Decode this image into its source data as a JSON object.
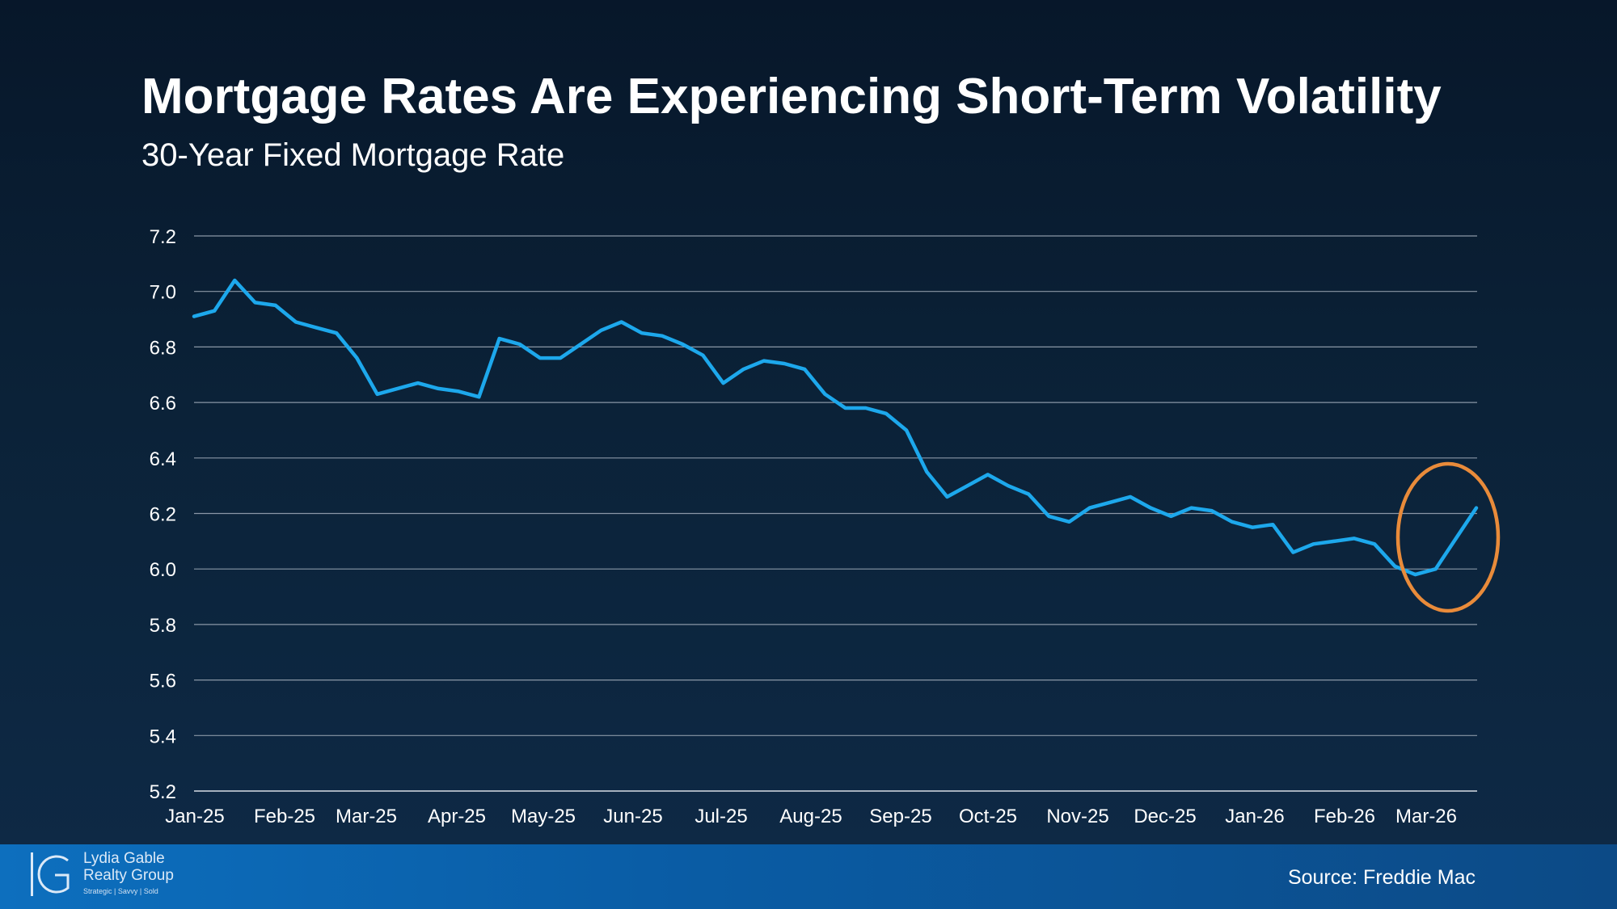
{
  "chart_data": {
    "type": "line",
    "title": "Mortgage Rates Are Experiencing Short-Term Volatility",
    "subtitle": "30-Year Fixed Mortgage Rate",
    "ylim": [
      5.2,
      7.2
    ],
    "yticks": [
      "7.2",
      "7.0",
      "6.8",
      "6.6",
      "6.4",
      "6.2",
      "6.0",
      "5.8",
      "5.6",
      "5.4",
      "5.2"
    ],
    "xticks": [
      "Jan-25",
      "Feb-25",
      "Mar-25",
      "Apr-25",
      "May-25",
      "Jun-25",
      "Jul-25",
      "Aug-25",
      "Sep-25",
      "Oct-25",
      "Nov-25",
      "Dec-25",
      "Jan-26",
      "Feb-26",
      "Mar-26"
    ],
    "grid": true,
    "series": [
      {
        "name": "30-Year Fixed Mortgage Rate",
        "color": "#1da8ec",
        "values": [
          6.91,
          6.93,
          7.04,
          6.96,
          6.95,
          6.89,
          6.87,
          6.85,
          6.76,
          6.63,
          6.65,
          6.67,
          6.65,
          6.64,
          6.62,
          6.83,
          6.81,
          6.76,
          6.76,
          6.81,
          6.86,
          6.89,
          6.85,
          6.84,
          6.81,
          6.77,
          6.67,
          6.72,
          6.75,
          6.74,
          6.72,
          6.63,
          6.58,
          6.58,
          6.56,
          6.5,
          6.35,
          6.26,
          6.3,
          6.34,
          6.3,
          6.27,
          6.19,
          6.17,
          6.22,
          6.24,
          6.26,
          6.22,
          6.19,
          6.22,
          6.21,
          6.17,
          6.15,
          6.16,
          6.06,
          6.09,
          6.1,
          6.11,
          6.09,
          6.01,
          5.98,
          6.0,
          6.11,
          6.22
        ]
      }
    ],
    "annotation": {
      "type": "circle-highlight",
      "color": "#e98b3a"
    }
  },
  "branding": {
    "company_line1": "Lydia Gable",
    "company_line2": "Realty Group",
    "tagline": "Strategic | Savvy | Sold"
  },
  "source": "Source: Freddie Mac",
  "colors": {
    "line": "#1da8ec",
    "grid": "#8a97a6",
    "highlight": "#e98b3a",
    "footer": "#0b5fa8"
  }
}
